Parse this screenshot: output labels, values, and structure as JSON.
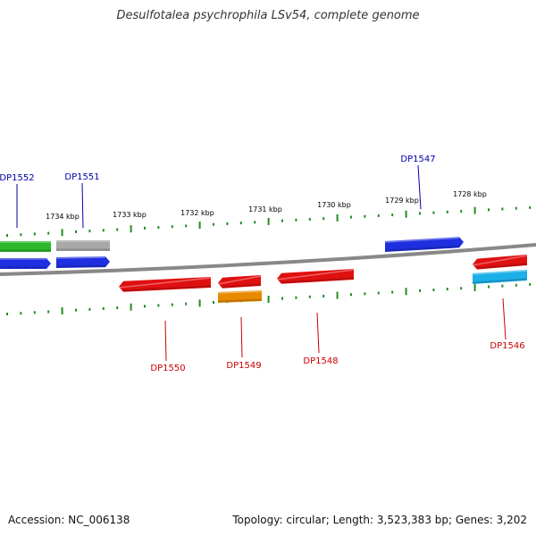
{
  "title": "Desulfotalea psychrophila LSv54, complete genome",
  "footer": {
    "accession": "Accession: NC_006138",
    "meta": "Topology: circular; Length: 3,523,383 bp; Genes: 3,202"
  },
  "colors": {
    "backbone": "#888888",
    "tick": "#228B22",
    "fwd_label": "#0000aa",
    "rev_label": "#cc0000"
  },
  "scale_labels": [
    "1734 kbp",
    "1733 kbp",
    "1732 kbp",
    "1731 kbp",
    "1730 kbp",
    "1729 kbp",
    "1728 kbp"
  ],
  "genes": [
    {
      "label": "DP1552",
      "strand": "+",
      "color": "#1E2FE0"
    },
    {
      "label": "DP1551",
      "strand": "+",
      "color": "#1E2FE0"
    },
    {
      "label": "DP1547",
      "strand": "+",
      "color": "#1E2FE0"
    },
    {
      "label": "DP1550",
      "strand": "-",
      "color": "#E01010"
    },
    {
      "label": "DP1549",
      "strand": "-",
      "color": "#E01010"
    },
    {
      "label": "DP1548",
      "strand": "-",
      "color": "#E01010"
    },
    {
      "label": "DP1546",
      "strand": "-",
      "color": "#E01010"
    }
  ],
  "other_features": [
    {
      "name": "green-feature",
      "color": "#2DB82D"
    },
    {
      "name": "gray-feature",
      "color": "#A8A8A8"
    },
    {
      "name": "orange-feature",
      "color": "#E88A00"
    },
    {
      "name": "cyan-feature",
      "color": "#1CB0E8"
    }
  ]
}
